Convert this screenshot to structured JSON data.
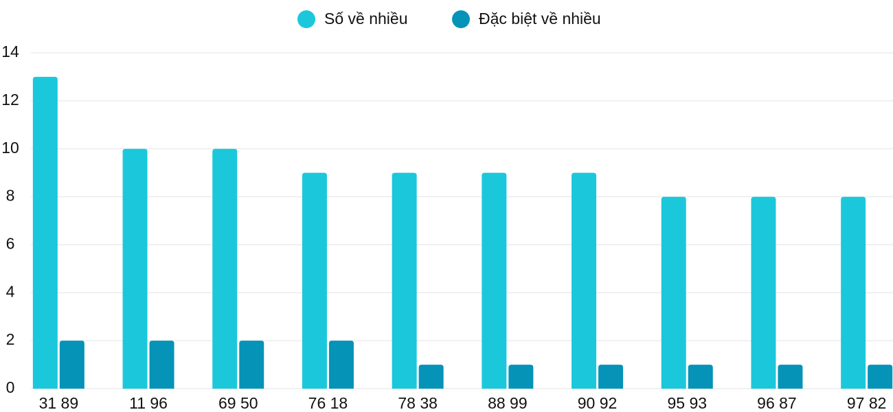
{
  "chart_data": {
    "type": "bar",
    "categories": [
      "31 89",
      "11 96",
      "69 50",
      "76 18",
      "78 38",
      "88 99",
      "90 92",
      "95 93",
      "96 87",
      "97 82"
    ],
    "series": [
      {
        "name": "Số về nhiều",
        "color": "#1bc8db",
        "values": [
          13,
          10,
          10,
          9,
          9,
          9,
          9,
          8,
          8,
          8
        ]
      },
      {
        "name": "Đặc biệt về nhiều",
        "color": "#0593b8",
        "values": [
          2,
          2,
          2,
          2,
          1,
          1,
          1,
          1,
          1,
          1
        ]
      }
    ],
    "ylim": [
      0,
      14
    ],
    "yticks": [
      0,
      2,
      4,
      6,
      8,
      10,
      12,
      14
    ],
    "grid": true,
    "legend": "top"
  }
}
